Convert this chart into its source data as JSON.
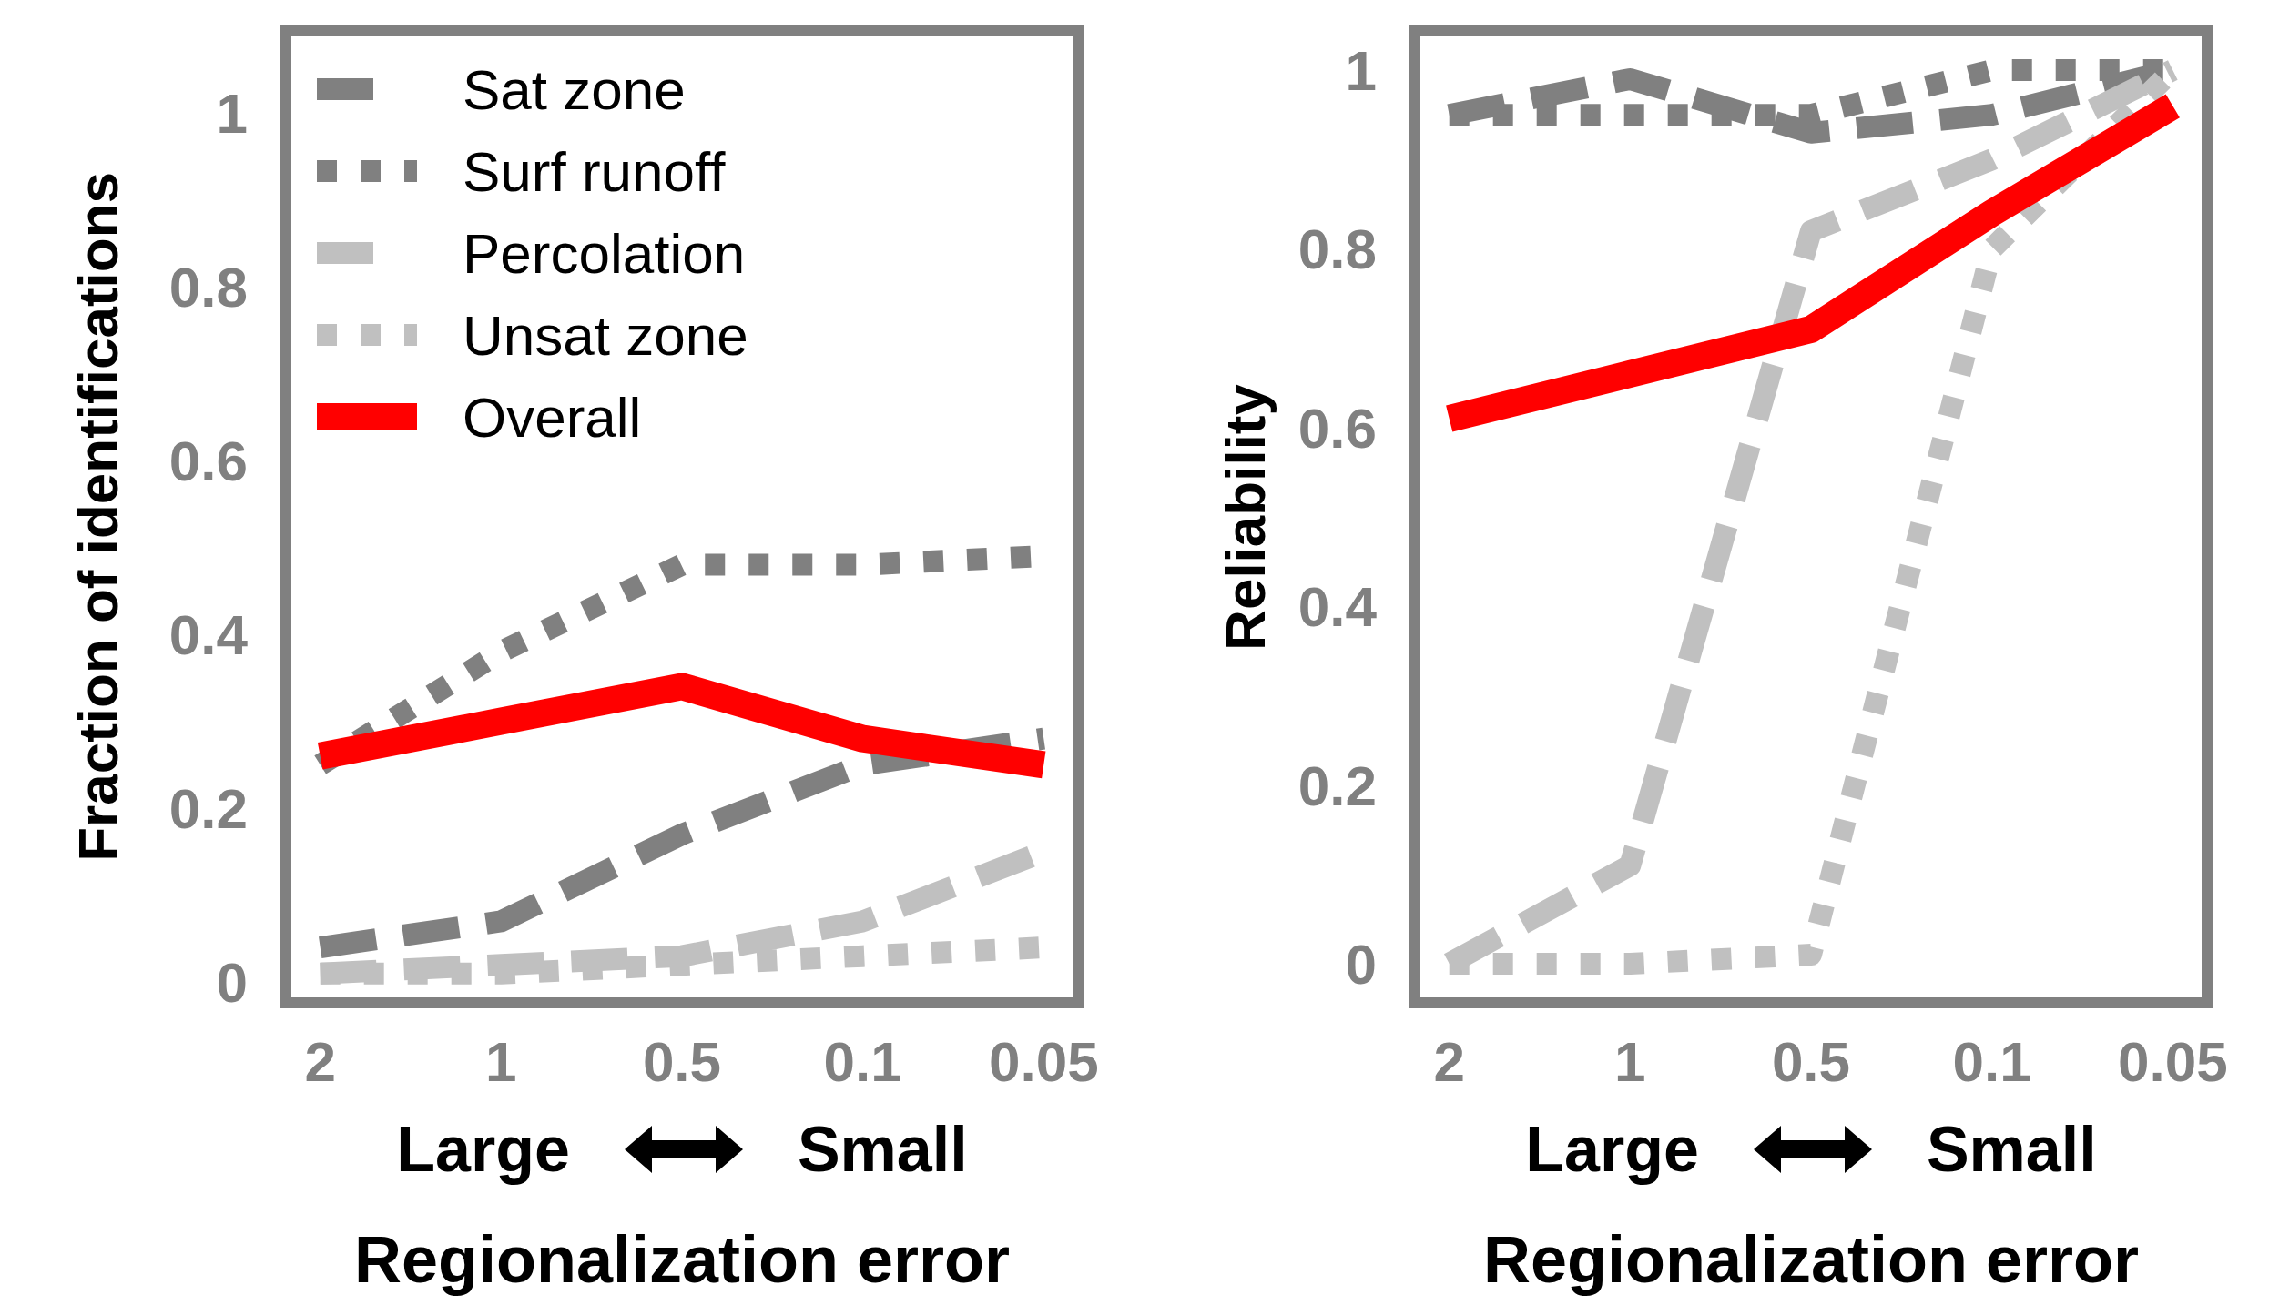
{
  "chart_data": [
    {
      "type": "line",
      "xlabel": "Regionalization error",
      "ylabel": "Fraction of identifications",
      "annotations": [
        "Large",
        "Small"
      ],
      "categories": [
        "2",
        "1",
        "0.5",
        "0.1",
        "0.05"
      ],
      "ylim": [
        -0.03,
        1.1
      ],
      "yticks": [
        0,
        0.2,
        0.4,
        0.6,
        0.8,
        1
      ],
      "grid": false,
      "legend": "top left",
      "marker": "none",
      "series": [
        {
          "name": "Sat zone",
          "color": "#808080",
          "line_style": "dashed",
          "values": [
            0.04,
            0.07,
            0.17,
            0.25,
            0.28
          ]
        },
        {
          "name": "Surf runoff",
          "color": "#808080",
          "line_style": "dotted",
          "values": [
            0.25,
            0.38,
            0.48,
            0.48,
            0.49
          ]
        },
        {
          "name": "Percolation",
          "color": "#c0c0c0",
          "line_style": "dashed",
          "values": [
            0.01,
            0.02,
            0.03,
            0.07,
            0.15
          ]
        },
        {
          "name": "Unsat zone",
          "color": "#c0c0c0",
          "line_style": "dotted",
          "values": [
            0.01,
            0.01,
            0.02,
            0.03,
            0.04
          ]
        },
        {
          "name": "Overall",
          "color": "#ff0000",
          "line_style": "solid",
          "values": [
            0.26,
            0.3,
            0.34,
            0.28,
            0.25
          ]
        }
      ]
    },
    {
      "type": "line",
      "xlabel": "Regionalization error",
      "ylabel": "Reliability",
      "annotations": [
        "Large",
        "Small"
      ],
      "categories": [
        "2",
        "1",
        "0.5",
        "0.1",
        "0.05"
      ],
      "ylim": [
        -0.05,
        1.05
      ],
      "yticks": [
        0,
        0.2,
        0.4,
        0.6,
        0.8,
        1
      ],
      "grid": false,
      "legend": false,
      "marker": "none",
      "series": [
        {
          "color": "#808080",
          "line_style": "dashed",
          "values": [
            0.95,
            0.99,
            0.93,
            0.95,
            1.0
          ]
        },
        {
          "color": "#808080",
          "line_style": "dotted",
          "values": [
            0.95,
            0.95,
            0.95,
            1.0,
            1.0
          ]
        },
        {
          "color": "#c0c0c0",
          "line_style": "dashed",
          "values": [
            0,
            0.11,
            0.82,
            0.9,
            1.0
          ]
        },
        {
          "color": "#c0c0c0",
          "line_style": "dotted",
          "values": [
            0,
            0,
            0.01,
            0.8,
            1.0
          ]
        },
        {
          "color": "#ff0000",
          "line_style": "solid",
          "values": [
            0.61,
            0.66,
            0.71,
            0.84,
            0.96
          ]
        }
      ]
    }
  ]
}
